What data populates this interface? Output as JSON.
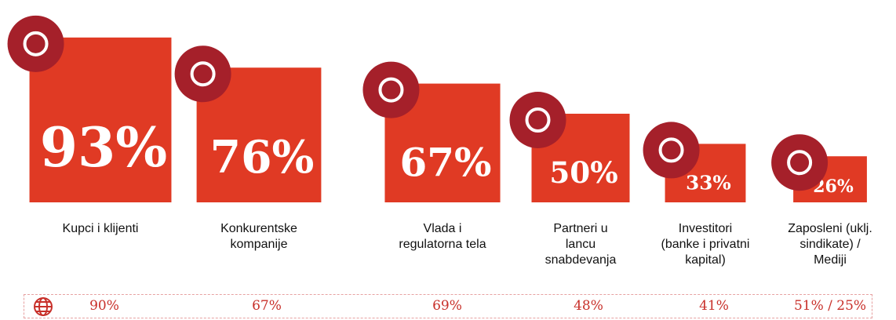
{
  "chart_data": {
    "type": "square",
    "categories": [
      "Kupci i klijenti",
      "Konkurentske\nkompanije",
      "Vlada i\nregulatorna tela",
      "Partneri u\nlancu\nsnabdevanja",
      "Investitori\n(banke i privatni\nkapital)",
      "Zaposleni (uklj.\nsindikate) /\nMediji"
    ],
    "values": [
      93,
      76,
      67,
      50,
      33,
      26
    ],
    "value_labels": [
      "93%",
      "76%",
      "67%",
      "50%",
      "33%",
      "26%"
    ],
    "color": "#e03a24",
    "icon_color": "#a5202a",
    "comparison": [
      {
        "value": 90,
        "label": "90%"
      },
      {
        "value": 67,
        "label": "67%"
      },
      {
        "value": 69,
        "label": "69%"
      },
      {
        "value": 48,
        "label": "48%"
      },
      {
        "value": 41,
        "label": "41%"
      },
      {
        "values": [
          51,
          25
        ],
        "label": "51% / 25%"
      }
    ]
  }
}
